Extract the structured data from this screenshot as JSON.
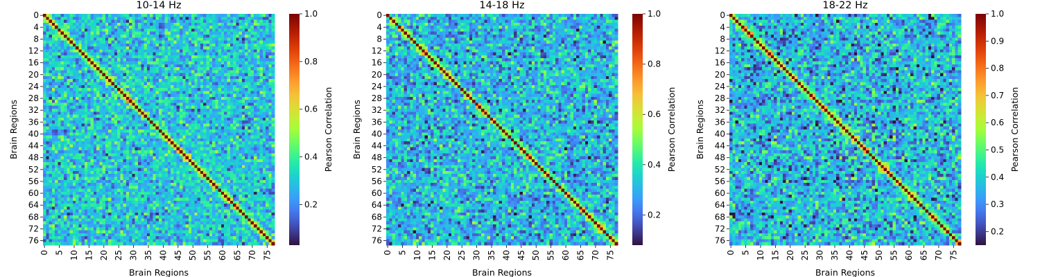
{
  "chart_data": [
    {
      "type": "heatmap",
      "title": "10-14 Hz",
      "xlabel": "Brain Regions",
      "ylabel": "Brain Regions",
      "n": 78,
      "x_tick_labels": [
        "0",
        "5",
        "10",
        "15",
        "20",
        "25",
        "30",
        "35",
        "40",
        "45",
        "50",
        "55",
        "60",
        "65",
        "70",
        "75"
      ],
      "y_tick_labels": [
        "0",
        "4",
        "8",
        "12",
        "16",
        "20",
        "24",
        "28",
        "32",
        "36",
        "40",
        "44",
        "48",
        "52",
        "56",
        "60",
        "64",
        "68",
        "72",
        "76"
      ],
      "colorbar_label": "Pearson Correlation",
      "colorbar_ticks": [
        "0.2",
        "0.4",
        "0.6",
        "0.8",
        "1.0"
      ],
      "vmin": 0.03,
      "vmax": 1.0,
      "diagonal": 1.0,
      "off_diagonal_mean": 0.3,
      "off_diagonal_range": [
        0.05,
        0.6
      ],
      "colormap": "turbo",
      "seed": 11
    },
    {
      "type": "heatmap",
      "title": "14-18 Hz",
      "xlabel": "Brain Regions",
      "ylabel": "Brain Regions",
      "n": 78,
      "x_tick_labels": [
        "0",
        "5",
        "10",
        "15",
        "20",
        "25",
        "30",
        "35",
        "40",
        "45",
        "50",
        "55",
        "60",
        "65",
        "70",
        "75"
      ],
      "y_tick_labels": [
        "0",
        "4",
        "8",
        "12",
        "16",
        "20",
        "24",
        "28",
        "32",
        "36",
        "40",
        "44",
        "48",
        "52",
        "56",
        "60",
        "64",
        "68",
        "72",
        "76"
      ],
      "colorbar_label": "Pearson Correlation",
      "colorbar_ticks": [
        "0.2",
        "0.4",
        "0.6",
        "0.8",
        "1.0"
      ],
      "vmin": 0.08,
      "vmax": 1.0,
      "diagonal": 1.0,
      "off_diagonal_mean": 0.31,
      "off_diagonal_range": [
        0.08,
        0.55
      ],
      "colormap": "turbo",
      "seed": 23
    },
    {
      "type": "heatmap",
      "title": "18-22 Hz",
      "xlabel": "Brain Regions",
      "ylabel": "Brain Regions",
      "n": 78,
      "x_tick_labels": [
        "0",
        "5",
        "10",
        "15",
        "20",
        "25",
        "30",
        "35",
        "40",
        "45",
        "50",
        "55",
        "60",
        "65",
        "70",
        "75"
      ],
      "y_tick_labels": [
        "0",
        "4",
        "8",
        "12",
        "16",
        "20",
        "24",
        "28",
        "32",
        "36",
        "40",
        "44",
        "48",
        "52",
        "56",
        "60",
        "64",
        "68",
        "72",
        "76"
      ],
      "colorbar_label": "Pearson Correlation",
      "colorbar_ticks": [
        "0.2",
        "0.3",
        "0.4",
        "0.5",
        "0.6",
        "0.7",
        "0.8",
        "0.9",
        "1.0"
      ],
      "vmin": 0.15,
      "vmax": 1.0,
      "diagonal": 1.0,
      "off_diagonal_mean": 0.36,
      "off_diagonal_range": [
        0.15,
        0.6
      ],
      "colormap": "turbo",
      "seed": 37
    }
  ]
}
